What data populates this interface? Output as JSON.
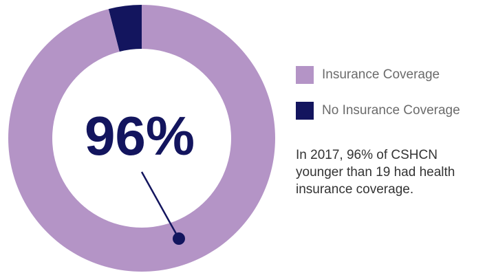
{
  "chart_data": {
    "type": "pie",
    "style": "donut",
    "categories": [
      "Insurance Coverage",
      "No Insurance Coverage"
    ],
    "values": [
      96,
      4
    ],
    "unit": "%",
    "colors": [
      "#b494c6",
      "#13155e"
    ],
    "center_label": "96%",
    "legend": {
      "placement": "right",
      "entries": [
        "Insurance Coverage",
        "No Insurance Coverage"
      ]
    },
    "annotation": [
      "In 2017, 96% of CSHCN",
      "younger than 19 had health",
      "insurance coverage."
    ]
  }
}
